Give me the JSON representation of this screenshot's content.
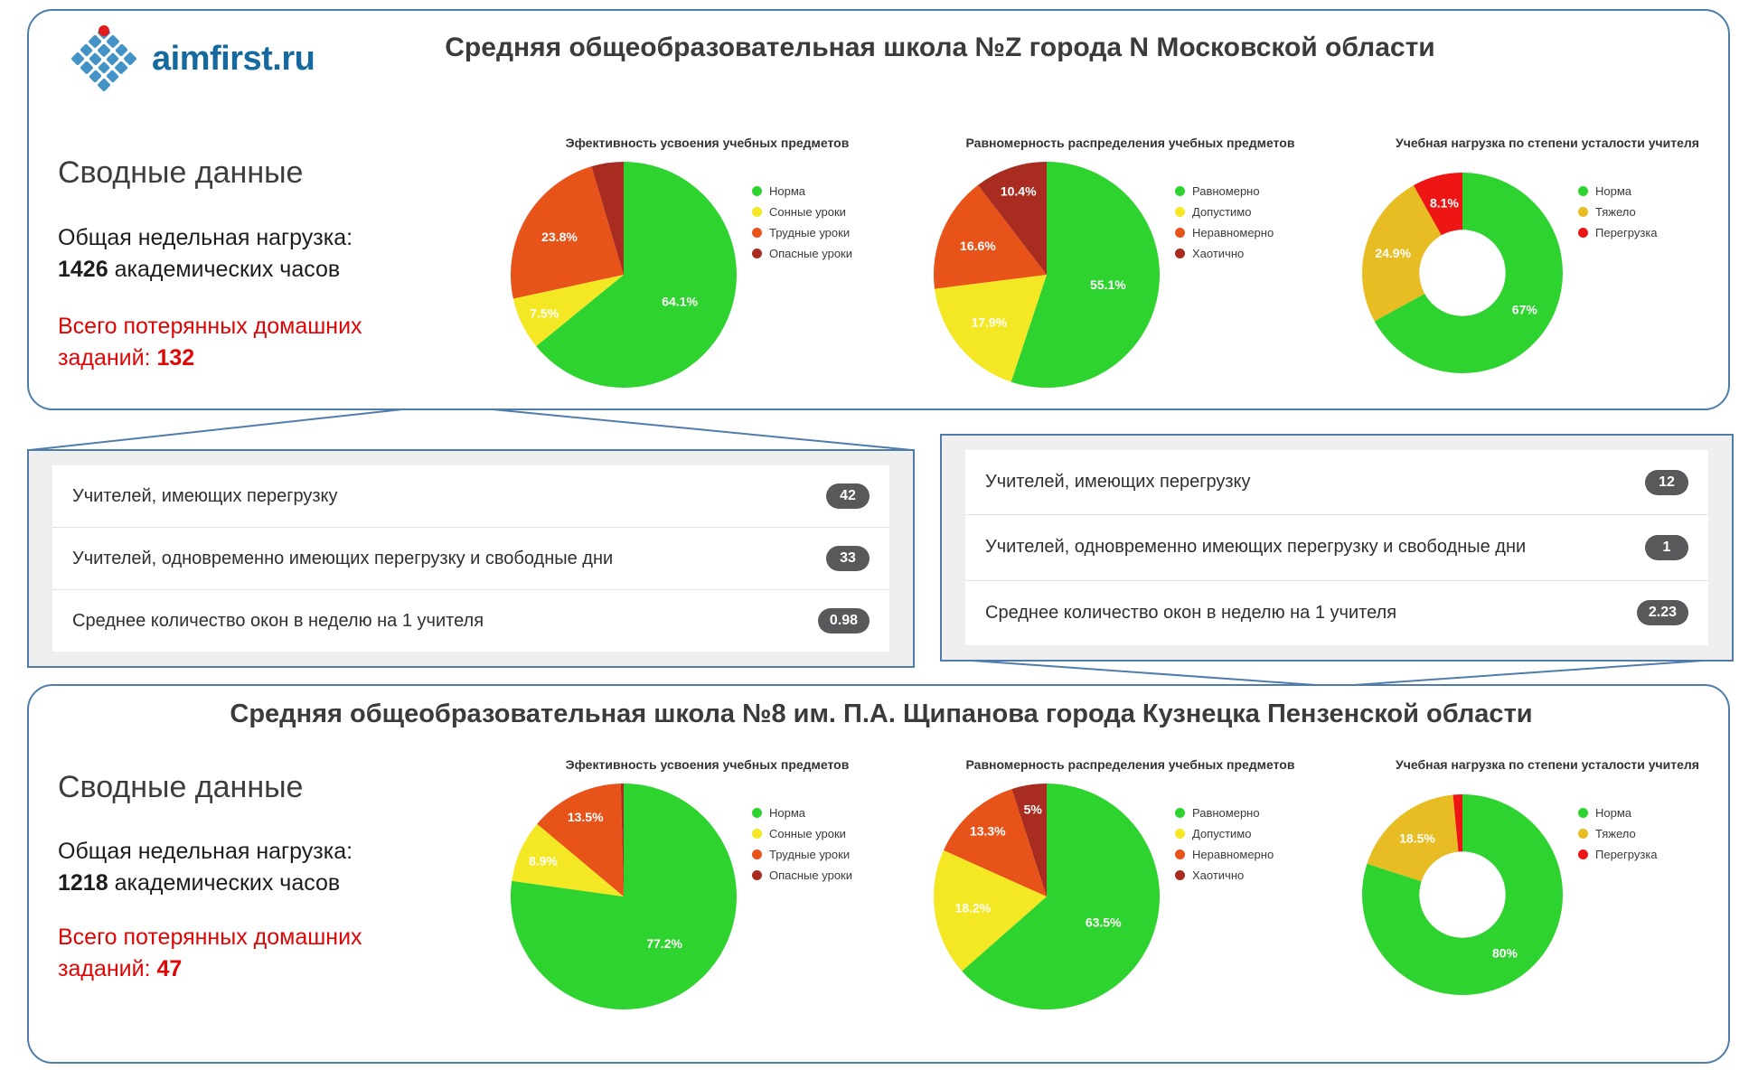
{
  "page": {
    "background": "#ffffff",
    "accent_border": "#4f7cab"
  },
  "logo": {
    "text": "aimfirst.ru",
    "brand_blue": "#14699e",
    "dot_red": "#e21b1b"
  },
  "school1": {
    "title": "Средняя общеобразовательная школа №Z  города N Московской области",
    "summary_heading": "Сводные данные",
    "load_label": "Общая недельная нагрузка:",
    "load_value": "1426",
    "load_suffix": "академических часов",
    "lost_label": "Всего потерянных домашних заданий:",
    "lost_value": "132"
  },
  "school2": {
    "title": "Средняя общеобразовательная школа №8 им. П.А. Щипанова города Кузнецка Пензенской области",
    "summary_heading": "Сводные данные",
    "load_label": "Общая недельная нагрузка:",
    "load_value": "1218",
    "load_suffix": "академических часов",
    "lost_label": "Всего потерянных домашних заданий:",
    "lost_value": "47"
  },
  "tables": [
    {
      "rows": [
        {
          "label": "Учителей, имеющих перегрузку",
          "value": "42"
        },
        {
          "label": "Учителей, одновременно имеющих перегрузку и свободные дни",
          "value": "33"
        },
        {
          "label": "Среднее количество окон в неделю на 1 учителя",
          "value": "0.98"
        }
      ]
    },
    {
      "rows": [
        {
          "label": "Учителей, имеющих перегрузку",
          "value": "12"
        },
        {
          "label": "Учителей, одновременно имеющих перегрузку и свободные дни",
          "value": "1"
        },
        {
          "label": "Среднее количество окон в неделю на 1 учителя",
          "value": "2.23"
        }
      ]
    }
  ],
  "chart_data": [
    {
      "id": "school1-effectiveness",
      "type": "pie",
      "title": "Эфективность усвоения учебных предметов",
      "labels": [
        "Норма",
        "Сонные уроки",
        "Трудные уроки",
        "Опасные уроки"
      ],
      "values": [
        64.1,
        7.5,
        23.8,
        4.6
      ],
      "slice_labels": [
        "64.1%",
        "7.5%",
        "23.8%",
        ""
      ],
      "colors": [
        "#2fd32f",
        "#f4e824",
        "#e8531a",
        "#a82c20"
      ],
      "legend_position": "right"
    },
    {
      "id": "school1-uniformity",
      "type": "pie",
      "title": "Равномерность распределения учебных предметов",
      "labels": [
        "Равномерно",
        "Допустимо",
        "Неравномерно",
        "Хаотично"
      ],
      "values": [
        55.1,
        17.9,
        16.6,
        10.4
      ],
      "slice_labels": [
        "55.1%",
        "17.9%",
        "16.6%",
        "10.4%"
      ],
      "colors": [
        "#2fd32f",
        "#f4e824",
        "#e8531a",
        "#a82c20"
      ],
      "legend_position": "right"
    },
    {
      "id": "school1-teacher-load",
      "type": "donut",
      "title": "Учебная нагрузка по степени усталости учителя",
      "labels": [
        "Норма",
        "Тяжело",
        "Перегрузка"
      ],
      "values": [
        67,
        24.9,
        8.1
      ],
      "slice_labels": [
        "67%",
        "24.9%",
        "8.1%"
      ],
      "colors": [
        "#2fd32f",
        "#e7bd23",
        "#ee1515"
      ],
      "legend_position": "right"
    },
    {
      "id": "school2-effectiveness",
      "type": "pie",
      "title": "Эфективность усвоения учебных предметов",
      "labels": [
        "Норма",
        "Сонные уроки",
        "Трудные уроки",
        "Опасные уроки"
      ],
      "values": [
        77.2,
        8.9,
        13.5,
        0.4
      ],
      "slice_labels": [
        "77.2%",
        "8.9%",
        "13.5%",
        ""
      ],
      "colors": [
        "#2fd32f",
        "#f4e824",
        "#e8531a",
        "#a82c20"
      ],
      "legend_position": "right"
    },
    {
      "id": "school2-uniformity",
      "type": "pie",
      "title": "Равномерность распределения учебных предметов",
      "labels": [
        "Равномерно",
        "Допустимо",
        "Неравномерно",
        "Хаотично"
      ],
      "values": [
        63.5,
        18.2,
        13.3,
        5
      ],
      "slice_labels": [
        "63.5%",
        "18.2%",
        "13.3%",
        "5%"
      ],
      "colors": [
        "#2fd32f",
        "#f4e824",
        "#e8531a",
        "#a82c20"
      ],
      "legend_position": "right"
    },
    {
      "id": "school2-teacher-load",
      "type": "donut",
      "title": "Учебная нагрузка по степени усталости учителя",
      "labels": [
        "Норма",
        "Тяжело",
        "Перегрузка"
      ],
      "values": [
        80,
        18.5,
        1.5
      ],
      "slice_labels": [
        "80%",
        "18.5%",
        ""
      ],
      "colors": [
        "#2fd32f",
        "#e7bd23",
        "#ee1515"
      ],
      "legend_position": "right"
    }
  ]
}
